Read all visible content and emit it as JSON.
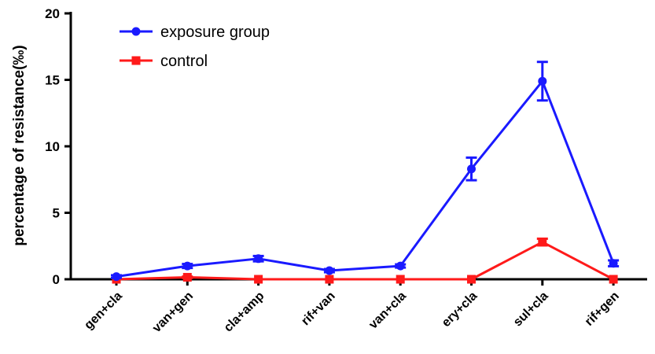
{
  "chart_data": {
    "type": "line",
    "ylabel": "percentage of resistance(‰)",
    "xlabel": "",
    "ylim": [
      0,
      20
    ],
    "yticks": [
      0,
      5,
      10,
      15,
      20
    ],
    "categories": [
      "gen+cla",
      "van+gen",
      "cla+amp",
      "rif+van",
      "van+cla",
      "ery+cla",
      "sul+cla",
      "rif+gen"
    ],
    "legend_position": "top-left",
    "series": [
      {
        "name": "exposure group",
        "color": "#1a1aff",
        "marker": "circle",
        "values": [
          0.2,
          1.0,
          1.55,
          0.65,
          1.0,
          8.3,
          14.9,
          1.2
        ],
        "err": [
          0.1,
          0.15,
          0.2,
          0.12,
          0.12,
          0.85,
          1.45,
          0.22
        ]
      },
      {
        "name": "control",
        "color": "#ff1a1a",
        "marker": "square",
        "values": [
          0.0,
          0.15,
          0.0,
          0.0,
          0.0,
          0.0,
          2.8,
          0.0
        ],
        "err": [
          0.0,
          0.05,
          0.0,
          0.0,
          0.0,
          0.0,
          0.25,
          0.0
        ]
      }
    ]
  }
}
